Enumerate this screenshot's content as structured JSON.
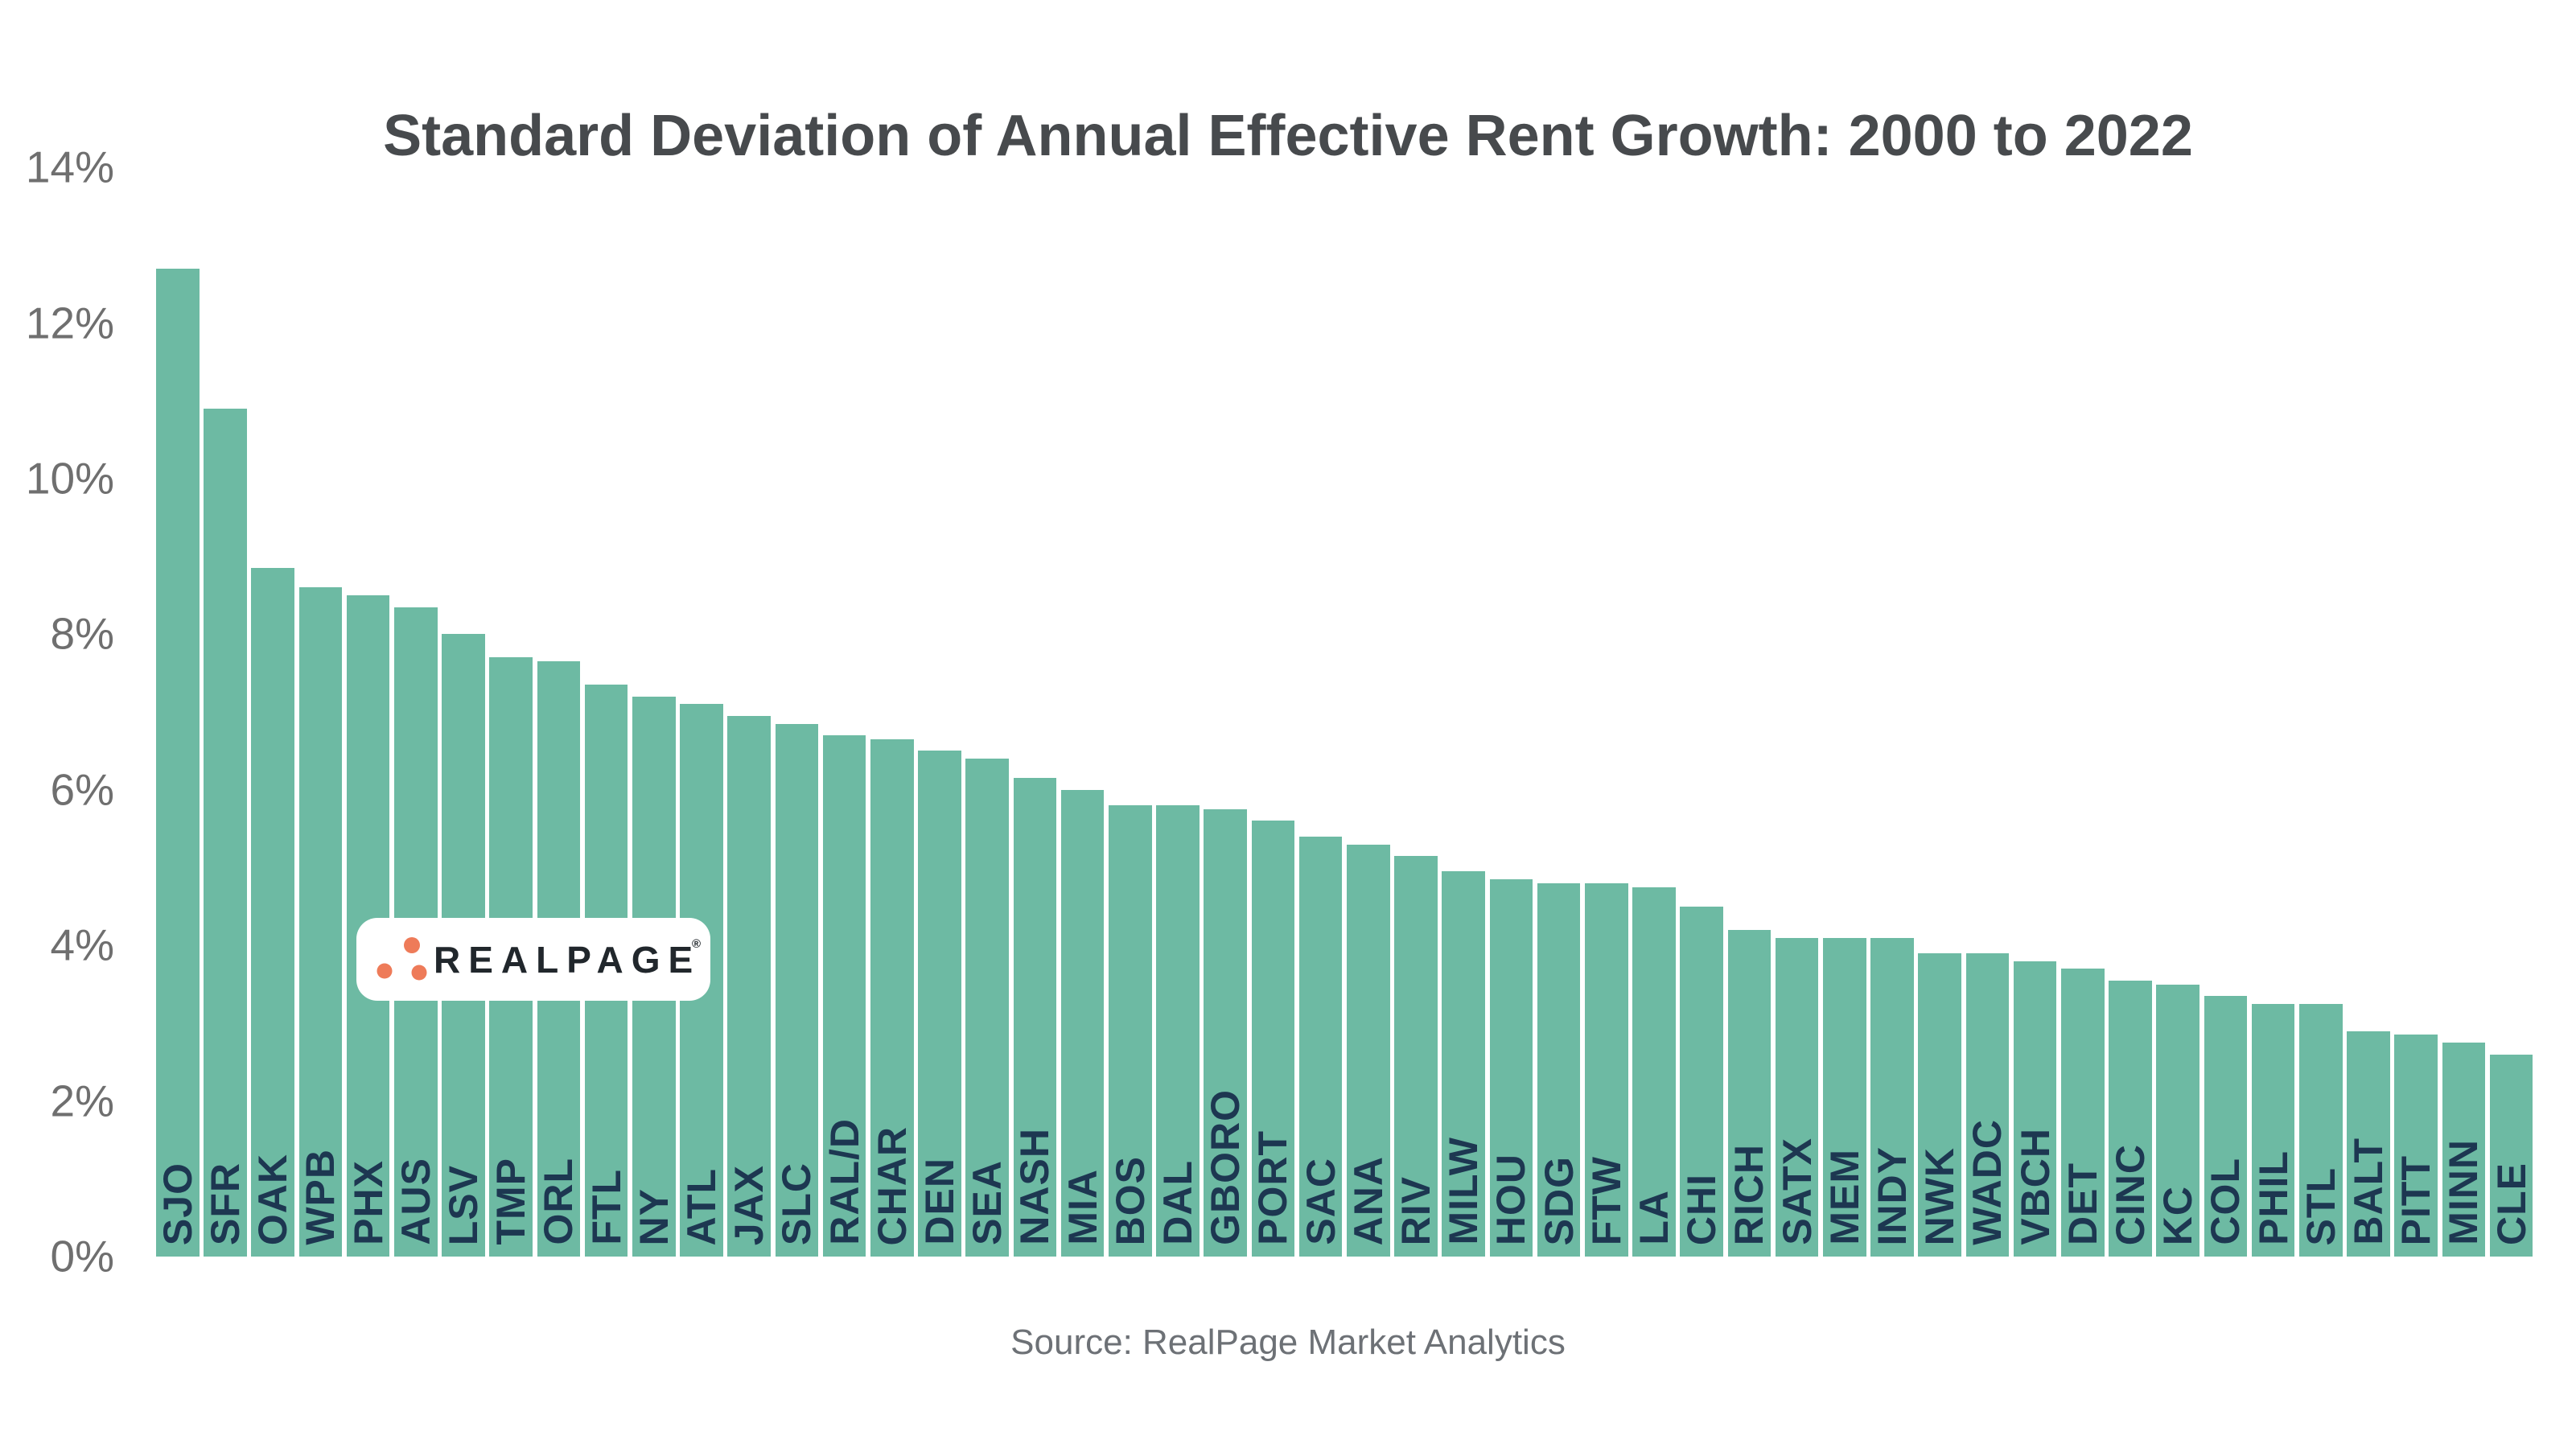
{
  "title": "Standard Deviation of Annual Effective Rent Growth: 2000 to 2022",
  "source": "Source: RealPage Market Analytics",
  "logo": {
    "brand": "REALPAGE",
    "registered": "®",
    "dot_color": "#ee7b59",
    "text_color": "#21272c"
  },
  "colors": {
    "background": "#ffffff",
    "bar": "#6dbaa3",
    "bar_label": "#1d3751",
    "axis_label": "#6f6f6f",
    "title": "#474a4d",
    "source": "#6d7176"
  },
  "y_axis": {
    "unit": "%",
    "min": 0,
    "max": 14,
    "tick_step": 2,
    "tick_labels": [
      "0%",
      "2%",
      "4%",
      "6%",
      "8%",
      "10%",
      "12%",
      "14%"
    ]
  },
  "chart_data": {
    "type": "bar",
    "title": "Standard Deviation of Annual Effective Rent Growth: 2000 to 2022",
    "xlabel": "",
    "ylabel": "",
    "ylim": [
      0,
      14
    ],
    "grid": false,
    "legend": false,
    "categories": [
      "SJO",
      "SFR",
      "OAK",
      "WPB",
      "PHX",
      "AUS",
      "LSV",
      "TMP",
      "ORL",
      "FTL",
      "NY",
      "ATL",
      "JAX",
      "SLC",
      "RAL/D",
      "CHAR",
      "DEN",
      "SEA",
      "NASH",
      "MIA",
      "BOS",
      "DAL",
      "GBORO",
      "PORT",
      "SAC",
      "ANA",
      "RIV",
      "MILW",
      "HOU",
      "SDG",
      "FTW",
      "LA",
      "CHI",
      "RICH",
      "SATX",
      "MEM",
      "INDY",
      "NWK",
      "WADC",
      "VBCH",
      "DET",
      "CINC",
      "KC",
      "COL",
      "PHIL",
      "STL",
      "BALT",
      "PITT",
      "MINN",
      "CLE"
    ],
    "values": [
      12.7,
      10.9,
      8.85,
      8.6,
      8.5,
      8.35,
      8.0,
      7.7,
      7.65,
      7.35,
      7.2,
      7.1,
      6.95,
      6.85,
      6.7,
      6.65,
      6.5,
      6.4,
      6.15,
      6.0,
      5.8,
      5.8,
      5.75,
      5.6,
      5.4,
      5.3,
      5.15,
      4.95,
      4.85,
      4.8,
      4.8,
      4.75,
      4.5,
      4.2,
      4.1,
      4.1,
      4.1,
      3.9,
      3.9,
      3.8,
      3.7,
      3.55,
      3.5,
      3.35,
      3.25,
      3.25,
      2.9,
      2.85,
      2.75,
      2.6
    ]
  }
}
